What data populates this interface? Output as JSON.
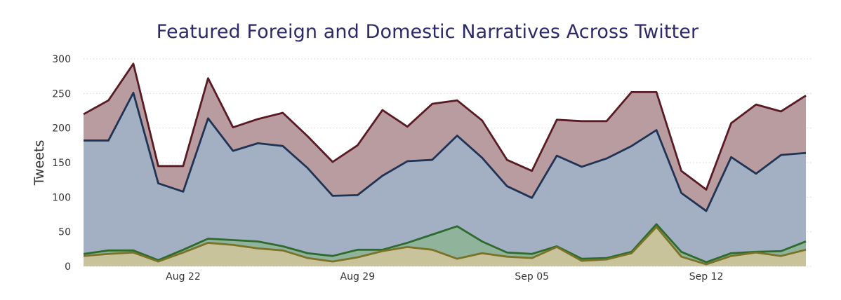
{
  "chart_data": {
    "type": "area",
    "title": "Featured Foreign and Domestic Narratives Across Twitter",
    "xlabel": "",
    "ylabel": "Tweets",
    "x": [
      "2021-08-18",
      "2021-08-19",
      "2021-08-20",
      "2021-08-21",
      "2021-08-22",
      "2021-08-23",
      "2021-08-24",
      "2021-08-25",
      "2021-08-26",
      "2021-08-27",
      "2021-08-28",
      "2021-08-29",
      "2021-08-30",
      "2021-08-31",
      "2021-09-01",
      "2021-09-02",
      "2021-09-03",
      "2021-09-04",
      "2021-09-05",
      "2021-09-06",
      "2021-09-07",
      "2021-09-08",
      "2021-09-09",
      "2021-09-10",
      "2021-09-11",
      "2021-09-12",
      "2021-09-13",
      "2021-09-14",
      "2021-09-15",
      "2021-09-16"
    ],
    "x_tick_labels": [
      "Aug 22",
      "Aug 29",
      "Sep 05",
      "Sep 12"
    ],
    "y_ticks": [
      0,
      50,
      100,
      150,
      200,
      250,
      300
    ],
    "ylim": [
      0,
      300
    ],
    "grid": "horizontal dotted",
    "legend": "none",
    "series": [
      {
        "color": "#b89c9f",
        "line": "#5a1a23",
        "values": [
          220,
          240,
          293,
          145,
          145,
          272,
          201,
          213,
          222,
          188,
          151,
          175,
          226,
          202,
          235,
          240,
          211,
          154,
          138,
          212,
          210,
          210,
          252,
          252,
          138,
          111,
          207,
          234,
          224,
          247
        ]
      },
      {
        "color": "#a3b0c3",
        "line": "#1f3355",
        "values": [
          182,
          182,
          251,
          120,
          108,
          214,
          167,
          178,
          174,
          142,
          102,
          103,
          131,
          152,
          154,
          189,
          157,
          116,
          99,
          160,
          144,
          156,
          174,
          197,
          106,
          80,
          158,
          134,
          161,
          164
        ]
      },
      {
        "color": "#8fb39a",
        "line": "#2d6b2d",
        "values": [
          18,
          23,
          23,
          9,
          24,
          40,
          38,
          36,
          29,
          19,
          15,
          24,
          24,
          34,
          46,
          58,
          36,
          20,
          18,
          29,
          11,
          12,
          21,
          61,
          21,
          6,
          19,
          21,
          22,
          36
        ]
      },
      {
        "color": "#c9c39b",
        "line": "#7a7227",
        "values": [
          15,
          18,
          20,
          7,
          20,
          34,
          31,
          26,
          23,
          12,
          7,
          13,
          22,
          28,
          24,
          11,
          19,
          14,
          12,
          28,
          8,
          10,
          19,
          57,
          14,
          3,
          15,
          20,
          15,
          24
        ]
      }
    ]
  }
}
